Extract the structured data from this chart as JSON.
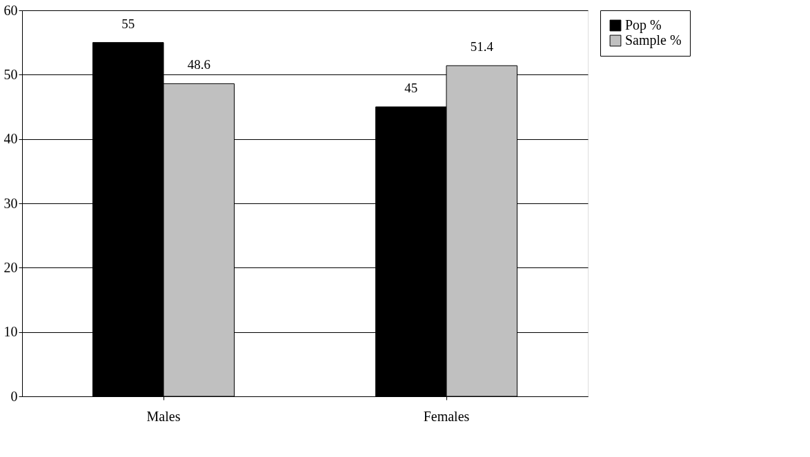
{
  "chart_data": {
    "type": "bar",
    "categories": [
      "Males",
      "Females"
    ],
    "series": [
      {
        "name": "Pop %",
        "color": "#000000",
        "values": [
          55,
          45
        ]
      },
      {
        "name": "Sample %",
        "color": "#c0c0c0",
        "values": [
          48.6,
          51.4
        ]
      }
    ],
    "ylim": [
      0,
      60
    ],
    "yticks": [
      0,
      10,
      20,
      30,
      40,
      50,
      60
    ],
    "grid": "y",
    "legend": "right",
    "data_labels": true
  }
}
